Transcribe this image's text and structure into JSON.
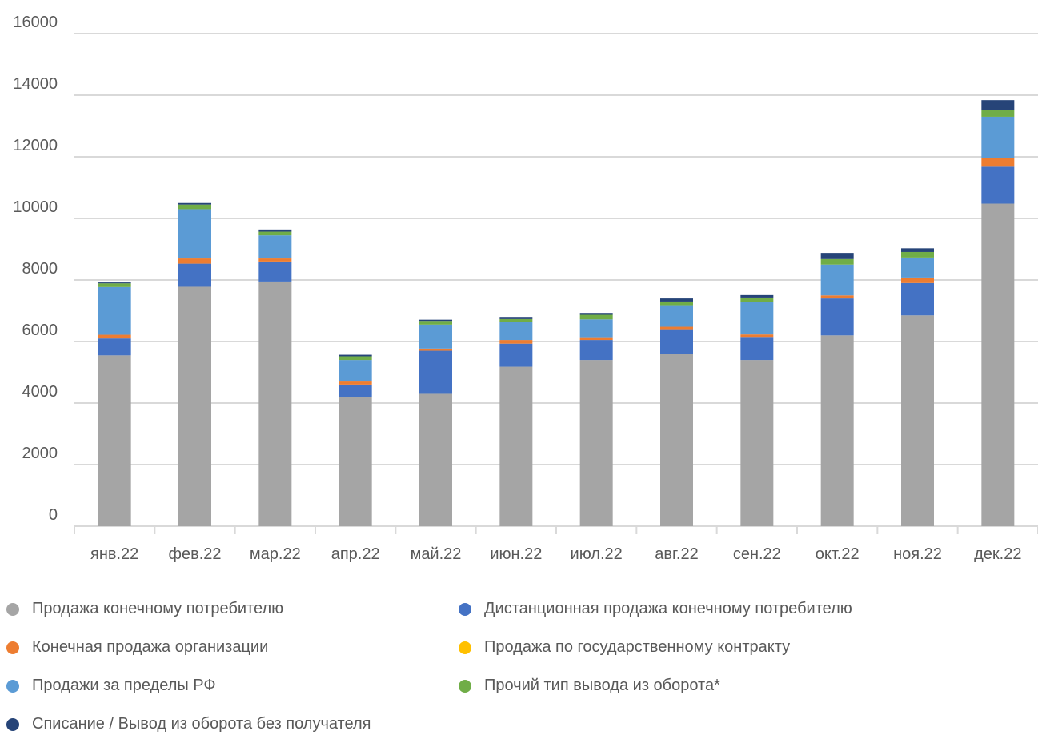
{
  "chart_data": {
    "type": "bar",
    "stacked": true,
    "title": "",
    "xlabel": "",
    "ylabel": "",
    "ylim": [
      0,
      16000
    ],
    "y_ticks": [
      "0",
      "2000",
      "4000",
      "6000",
      "8000",
      "10000",
      "12000",
      "14000",
      "16000"
    ],
    "grid": true,
    "legend_position": "bottom",
    "categories": [
      "янв.22",
      "фев.22",
      "мар.22",
      "апр.22",
      "май.22",
      "июн.22",
      "июл.22",
      "авг.22",
      "сен.22",
      "окт.22",
      "ноя.22",
      "дек.22"
    ],
    "series": [
      {
        "name": "Продажа конечному потребителю",
        "color": "#a5a5a5",
        "values": [
          5550,
          7780,
          7950,
          4200,
          4300,
          5180,
          5400,
          5600,
          5400,
          6200,
          6850,
          10480
        ]
      },
      {
        "name": "Дистанционная продажа конечному потребителю",
        "color": "#4472c4",
        "values": [
          550,
          750,
          650,
          400,
          1400,
          750,
          650,
          800,
          750,
          1200,
          1050,
          1200
        ]
      },
      {
        "name": "Конечная продажа организации",
        "color": "#ed7d31",
        "values": [
          120,
          170,
          100,
          100,
          70,
          120,
          90,
          80,
          80,
          100,
          180,
          270
        ]
      },
      {
        "name": "Продажа по государственному контракту",
        "color": "#ffc000",
        "values": [
          0,
          0,
          0,
          0,
          0,
          0,
          0,
          0,
          0,
          0,
          0,
          0
        ]
      },
      {
        "name": "Продажи за пределы РФ",
        "color": "#5b9bd5",
        "values": [
          1550,
          1600,
          750,
          700,
          780,
          580,
          580,
          700,
          1050,
          1000,
          650,
          1350
        ]
      },
      {
        "name": "Прочий тип вывода из оборота*",
        "color": "#70ad47",
        "values": [
          120,
          150,
          120,
          120,
          120,
          100,
          150,
          120,
          150,
          180,
          180,
          230
        ]
      },
      {
        "name": "Списание / Вывод из оборота без получателя",
        "color": "#264478",
        "values": [
          30,
          50,
          70,
          50,
          40,
          70,
          60,
          100,
          80,
          200,
          120,
          310
        ]
      }
    ]
  }
}
